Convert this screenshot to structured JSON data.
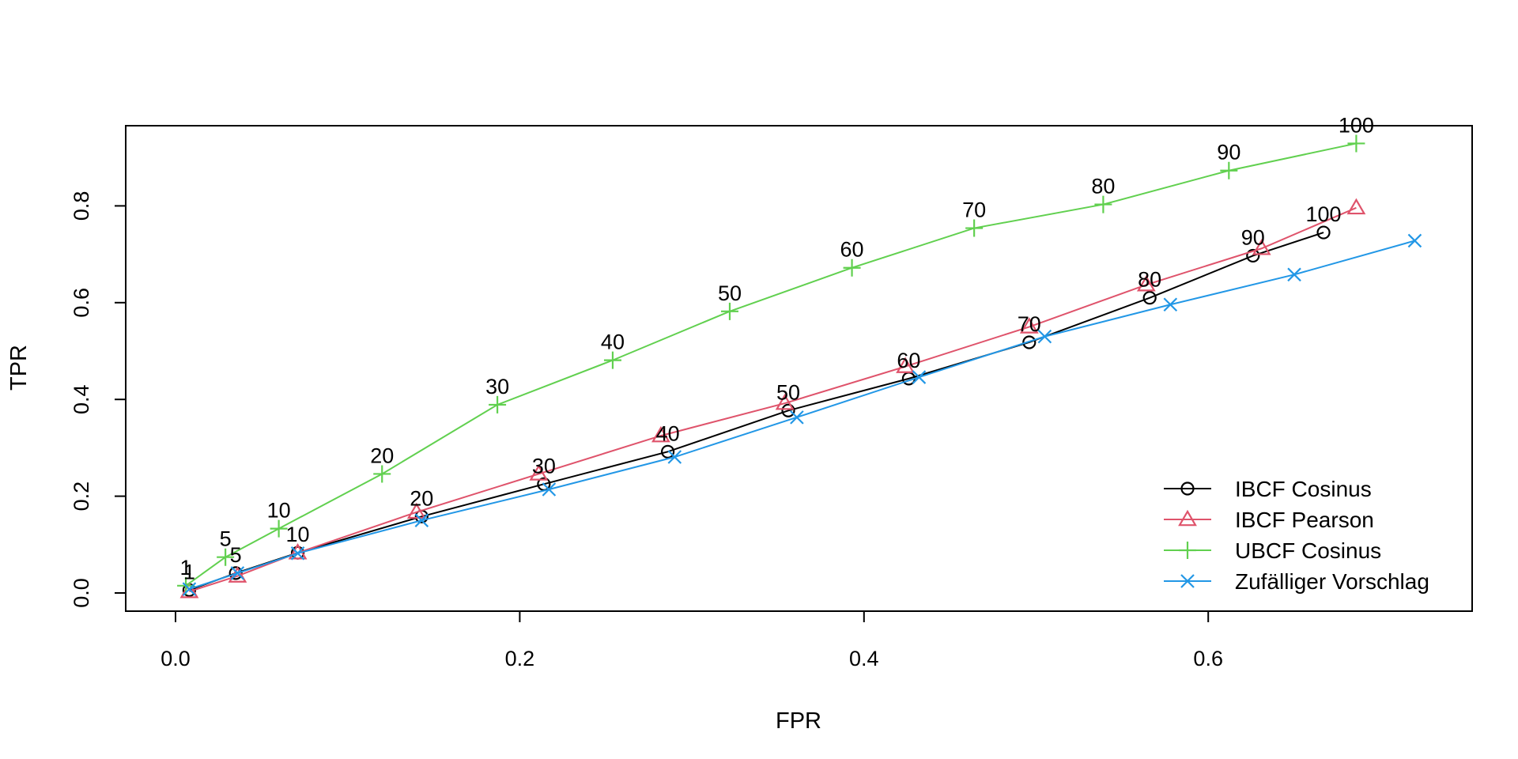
{
  "chart_data": {
    "type": "line",
    "title": "",
    "xlabel": "FPR",
    "ylabel": "TPR",
    "xlim": [
      0.0,
      0.72
    ],
    "ylim": [
      0.0,
      0.93
    ],
    "xticks": [
      0.0,
      0.2,
      0.4,
      0.6
    ],
    "xtick_labels": [
      "0.0",
      "0.2",
      "0.4",
      "0.6"
    ],
    "yticks": [
      0.0,
      0.2,
      0.4,
      0.6,
      0.8
    ],
    "ytick_labels": [
      "0.0",
      "0.2",
      "0.4",
      "0.6",
      "0.8"
    ],
    "grid": false,
    "legend_position": "bottom-right",
    "series": [
      {
        "name": "IBCF Cosinus",
        "color": "#000000",
        "marker": "circle",
        "x": [
          0.008,
          0.035,
          0.071,
          0.143,
          0.214,
          0.286,
          0.356,
          0.426,
          0.496,
          0.566,
          0.626,
          0.667
        ],
        "y": [
          0.006,
          0.041,
          0.083,
          0.158,
          0.225,
          0.292,
          0.377,
          0.443,
          0.518,
          0.61,
          0.697,
          0.745
        ],
        "labels": [
          "1",
          "5",
          "10",
          "20",
          "30",
          "40",
          "50",
          "60",
          "70",
          "80",
          "90",
          "100"
        ],
        "show_labels": true
      },
      {
        "name": "IBCF Pearson",
        "color": "#DF536B",
        "marker": "triangle",
        "x": [
          0.008,
          0.036,
          0.071,
          0.14,
          0.211,
          0.282,
          0.354,
          0.424,
          0.496,
          0.564,
          0.631,
          0.686
        ],
        "y": [
          0.003,
          0.035,
          0.083,
          0.167,
          0.246,
          0.325,
          0.392,
          0.468,
          0.55,
          0.637,
          0.712,
          0.796
        ],
        "labels": [
          "1",
          "5",
          "10",
          "20",
          "30",
          "40",
          "50",
          "60",
          "70",
          "80",
          "90",
          "100"
        ],
        "show_labels": false
      },
      {
        "name": "UBCF Cosinus",
        "color": "#61D04F",
        "marker": "plus",
        "x": [
          0.006,
          0.029,
          0.06,
          0.12,
          0.187,
          0.254,
          0.322,
          0.393,
          0.464,
          0.539,
          0.612,
          0.686
        ],
        "y": [
          0.015,
          0.074,
          0.133,
          0.246,
          0.389,
          0.481,
          0.582,
          0.672,
          0.754,
          0.803,
          0.873,
          0.929
        ],
        "labels": [
          "1",
          "5",
          "10",
          "20",
          "30",
          "40",
          "50",
          "60",
          "70",
          "80",
          "90",
          "100"
        ],
        "show_labels": true
      },
      {
        "name": "Zufälliger Vorschlag",
        "color": "#2297E6",
        "marker": "cross",
        "x": [
          0.008,
          0.036,
          0.071,
          0.143,
          0.217,
          0.29,
          0.361,
          0.432,
          0.505,
          0.578,
          0.65,
          0.72
        ],
        "y": [
          0.008,
          0.041,
          0.082,
          0.15,
          0.214,
          0.281,
          0.363,
          0.446,
          0.53,
          0.596,
          0.658,
          0.728
        ],
        "labels": [
          "1",
          "5",
          "10",
          "20",
          "30",
          "40",
          "50",
          "60",
          "70",
          "80",
          "90",
          "100"
        ],
        "show_labels": false
      }
    ]
  }
}
